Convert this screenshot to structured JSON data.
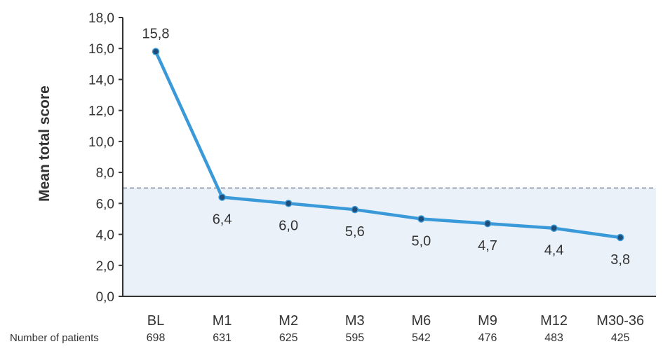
{
  "chart_data": {
    "type": "line",
    "title": "",
    "xlabel": "",
    "ylabel": "Mean total score",
    "ylim": [
      0,
      18
    ],
    "yticks": [
      "0,0",
      "2,0",
      "4,0",
      "6,0",
      "8,0",
      "10,0",
      "12,0",
      "14,0",
      "16,0",
      "18,0"
    ],
    "ytick_values": [
      0,
      2,
      4,
      6,
      8,
      10,
      12,
      14,
      16,
      18
    ],
    "categories": [
      "BL",
      "M1",
      "M2",
      "M3",
      "M6",
      "M9",
      "M12",
      "M30-36"
    ],
    "values": [
      15.8,
      6.4,
      6.0,
      5.6,
      5.0,
      4.7,
      4.4,
      3.8
    ],
    "data_labels": [
      "15,8",
      "6,4",
      "6,0",
      "5,6",
      "5,0",
      "4,7",
      "4,4",
      "3,8"
    ],
    "threshold": 7,
    "threshold_style": "dashed, shaded region below",
    "grid": false,
    "patients_label": "Number of patients",
    "patients": [
      "698",
      "631",
      "625",
      "595",
      "542",
      "476",
      "483",
      "425"
    ],
    "colors": {
      "line": "#3a9ad9",
      "marker": "#1f4e79",
      "shade": "#ebf1f9",
      "axis": "#333333"
    }
  }
}
